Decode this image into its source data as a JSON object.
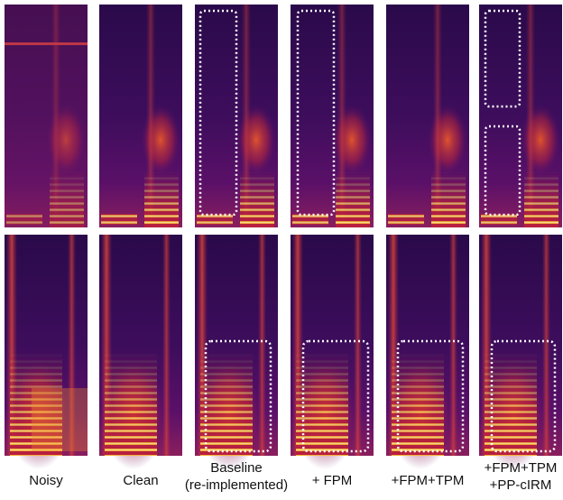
{
  "labels": [
    [
      "Noisy"
    ],
    [
      "Clean"
    ],
    [
      "Baseline",
      "(re-implemented)"
    ],
    [
      "+ FPM"
    ],
    [
      "+FPM+TPM"
    ],
    [
      "+FPM+TPM",
      "+PP-cIRM"
    ]
  ]
}
